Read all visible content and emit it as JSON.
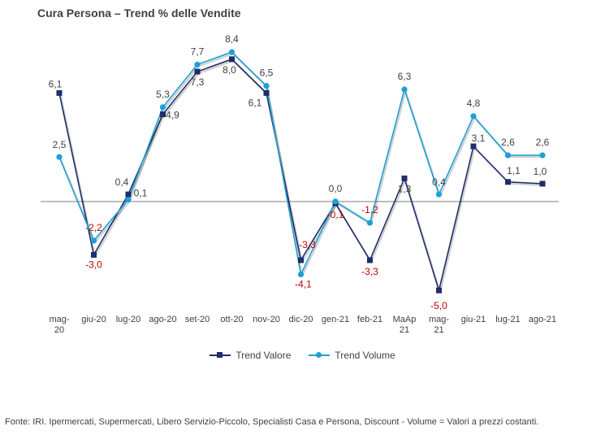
{
  "chart_data": {
    "type": "line",
    "title": "Cura Persona –  Trend % delle Vendite",
    "categories": [
      "mag-20",
      "giu-20",
      "lug-20",
      "ago-20",
      "set-20",
      "ott-20",
      "nov-20",
      "dic-20",
      "gen-21",
      "feb-21",
      "MaAp 21",
      "mag-21",
      "giu-21",
      "lug-21",
      "ago-21"
    ],
    "category_labels": [
      [
        "mag-",
        "20"
      ],
      [
        "giu-20"
      ],
      [
        "lug-20"
      ],
      [
        "ago-20"
      ],
      [
        "set-20"
      ],
      [
        "ott-20"
      ],
      [
        "nov-20"
      ],
      [
        "dic-20"
      ],
      [
        "gen-21"
      ],
      [
        "feb-21"
      ],
      [
        "MaAp",
        "21"
      ],
      [
        "mag-",
        "21"
      ],
      [
        "giu-21"
      ],
      [
        "lug-21"
      ],
      [
        "ago-21"
      ]
    ],
    "series": [
      {
        "name": "Trend Valore",
        "color": "#1f2d6b",
        "marker": "square",
        "values": [
          6.1,
          -3.0,
          0.4,
          4.9,
          7.3,
          8.0,
          6.1,
          -3.3,
          -0.1,
          -3.3,
          1.3,
          -5.0,
          3.1,
          1.1,
          1.0
        ],
        "labels": [
          "6,1",
          "-3,0",
          "0,4",
          "4,9",
          "7,3",
          "8,0",
          "6,1",
          "-3,3",
          "-0,1",
          "-3,3",
          "1,3",
          "-5,0",
          "3,1",
          "1,1",
          "1,0"
        ]
      },
      {
        "name": "Trend Volume",
        "color": "#1ca0d6",
        "marker": "circle",
        "values": [
          2.5,
          -2.2,
          0.1,
          5.3,
          7.7,
          8.4,
          6.5,
          -4.1,
          0.0,
          -1.2,
          6.3,
          0.4,
          4.8,
          2.6,
          2.6
        ],
        "labels": [
          "2,5",
          "-2,2",
          "0,1",
          "5,3",
          "7,7",
          "8,4",
          "6,5",
          "-4,1",
          "0,0",
          "-1,2",
          "6,3",
          "0,4",
          "4,8",
          "2,6",
          "2,6"
        ]
      }
    ],
    "negative_label_color": "#c00000",
    "positive_label_color": "#404040",
    "ylim": [
      -6.5,
      9.5
    ],
    "grid": false,
    "legend_position": "bottom"
  },
  "footer": {
    "source": "Fonte: IRI. Ipermercati, Supermercati, Libero Servizio-Piccolo,  Specialisti Casa e Persona, Discount -  Volume =  Valori a prezzi  costanti."
  }
}
